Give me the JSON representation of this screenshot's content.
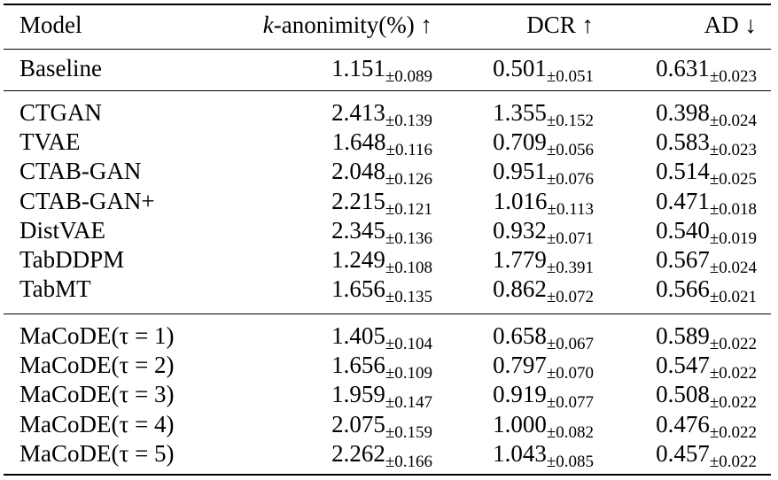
{
  "table": {
    "headers": {
      "model": "Model",
      "k_prefix": "k",
      "k_rest": "-anonimity(%)",
      "k_arrow": "↑",
      "dcr": "DCR",
      "dcr_arrow": "↑",
      "ad": "AD",
      "ad_arrow": "↓"
    },
    "groups": [
      [
        {
          "model": "Baseline",
          "k": "1.151",
          "k_sd": "±0.089",
          "dcr": "0.501",
          "dcr_sd": "±0.051",
          "ad": "0.631",
          "ad_sd": "±0.023"
        }
      ],
      [
        {
          "model": "CTGAN",
          "k": "2.413",
          "k_sd": "±0.139",
          "dcr": "1.355",
          "dcr_sd": "±0.152",
          "ad": "0.398",
          "ad_sd": "±0.024"
        },
        {
          "model": "TVAE",
          "k": "1.648",
          "k_sd": "±0.116",
          "dcr": "0.709",
          "dcr_sd": "±0.056",
          "ad": "0.583",
          "ad_sd": "±0.023"
        },
        {
          "model": "CTAB-GAN",
          "k": "2.048",
          "k_sd": "±0.126",
          "dcr": "0.951",
          "dcr_sd": "±0.076",
          "ad": "0.514",
          "ad_sd": "±0.025"
        },
        {
          "model": "CTAB-GAN+",
          "k": "2.215",
          "k_sd": "±0.121",
          "dcr": "1.016",
          "dcr_sd": "±0.113",
          "ad": "0.471",
          "ad_sd": "±0.018"
        },
        {
          "model": "DistVAE",
          "k": "2.345",
          "k_sd": "±0.136",
          "dcr": "0.932",
          "dcr_sd": "±0.071",
          "ad": "0.540",
          "ad_sd": "±0.019"
        },
        {
          "model": "TabDDPM",
          "k": "1.249",
          "k_sd": "±0.108",
          "dcr": "1.779",
          "dcr_sd": "±0.391",
          "ad": "0.567",
          "ad_sd": "±0.024"
        },
        {
          "model": "TabMT",
          "k": "1.656",
          "k_sd": "±0.135",
          "dcr": "0.862",
          "dcr_sd": "±0.072",
          "ad": "0.566",
          "ad_sd": "±0.021"
        }
      ],
      [
        {
          "model": "MaCoDE(τ = 1)",
          "k": "1.405",
          "k_sd": "±0.104",
          "dcr": "0.658",
          "dcr_sd": "±0.067",
          "ad": "0.589",
          "ad_sd": "±0.022"
        },
        {
          "model": "MaCoDE(τ = 2)",
          "k": "1.656",
          "k_sd": "±0.109",
          "dcr": "0.797",
          "dcr_sd": "±0.070",
          "ad": "0.547",
          "ad_sd": "±0.022"
        },
        {
          "model": "MaCoDE(τ = 3)",
          "k": "1.959",
          "k_sd": "±0.147",
          "dcr": "0.919",
          "dcr_sd": "±0.077",
          "ad": "0.508",
          "ad_sd": "±0.022"
        },
        {
          "model": "MaCoDE(τ = 4)",
          "k": "2.075",
          "k_sd": "±0.159",
          "dcr": "1.000",
          "dcr_sd": "±0.082",
          "ad": "0.476",
          "ad_sd": "±0.022"
        },
        {
          "model": "MaCoDE(τ = 5)",
          "k": "2.262",
          "k_sd": "±0.166",
          "dcr": "1.043",
          "dcr_sd": "±0.085",
          "ad": "0.457",
          "ad_sd": "±0.022"
        }
      ]
    ]
  }
}
